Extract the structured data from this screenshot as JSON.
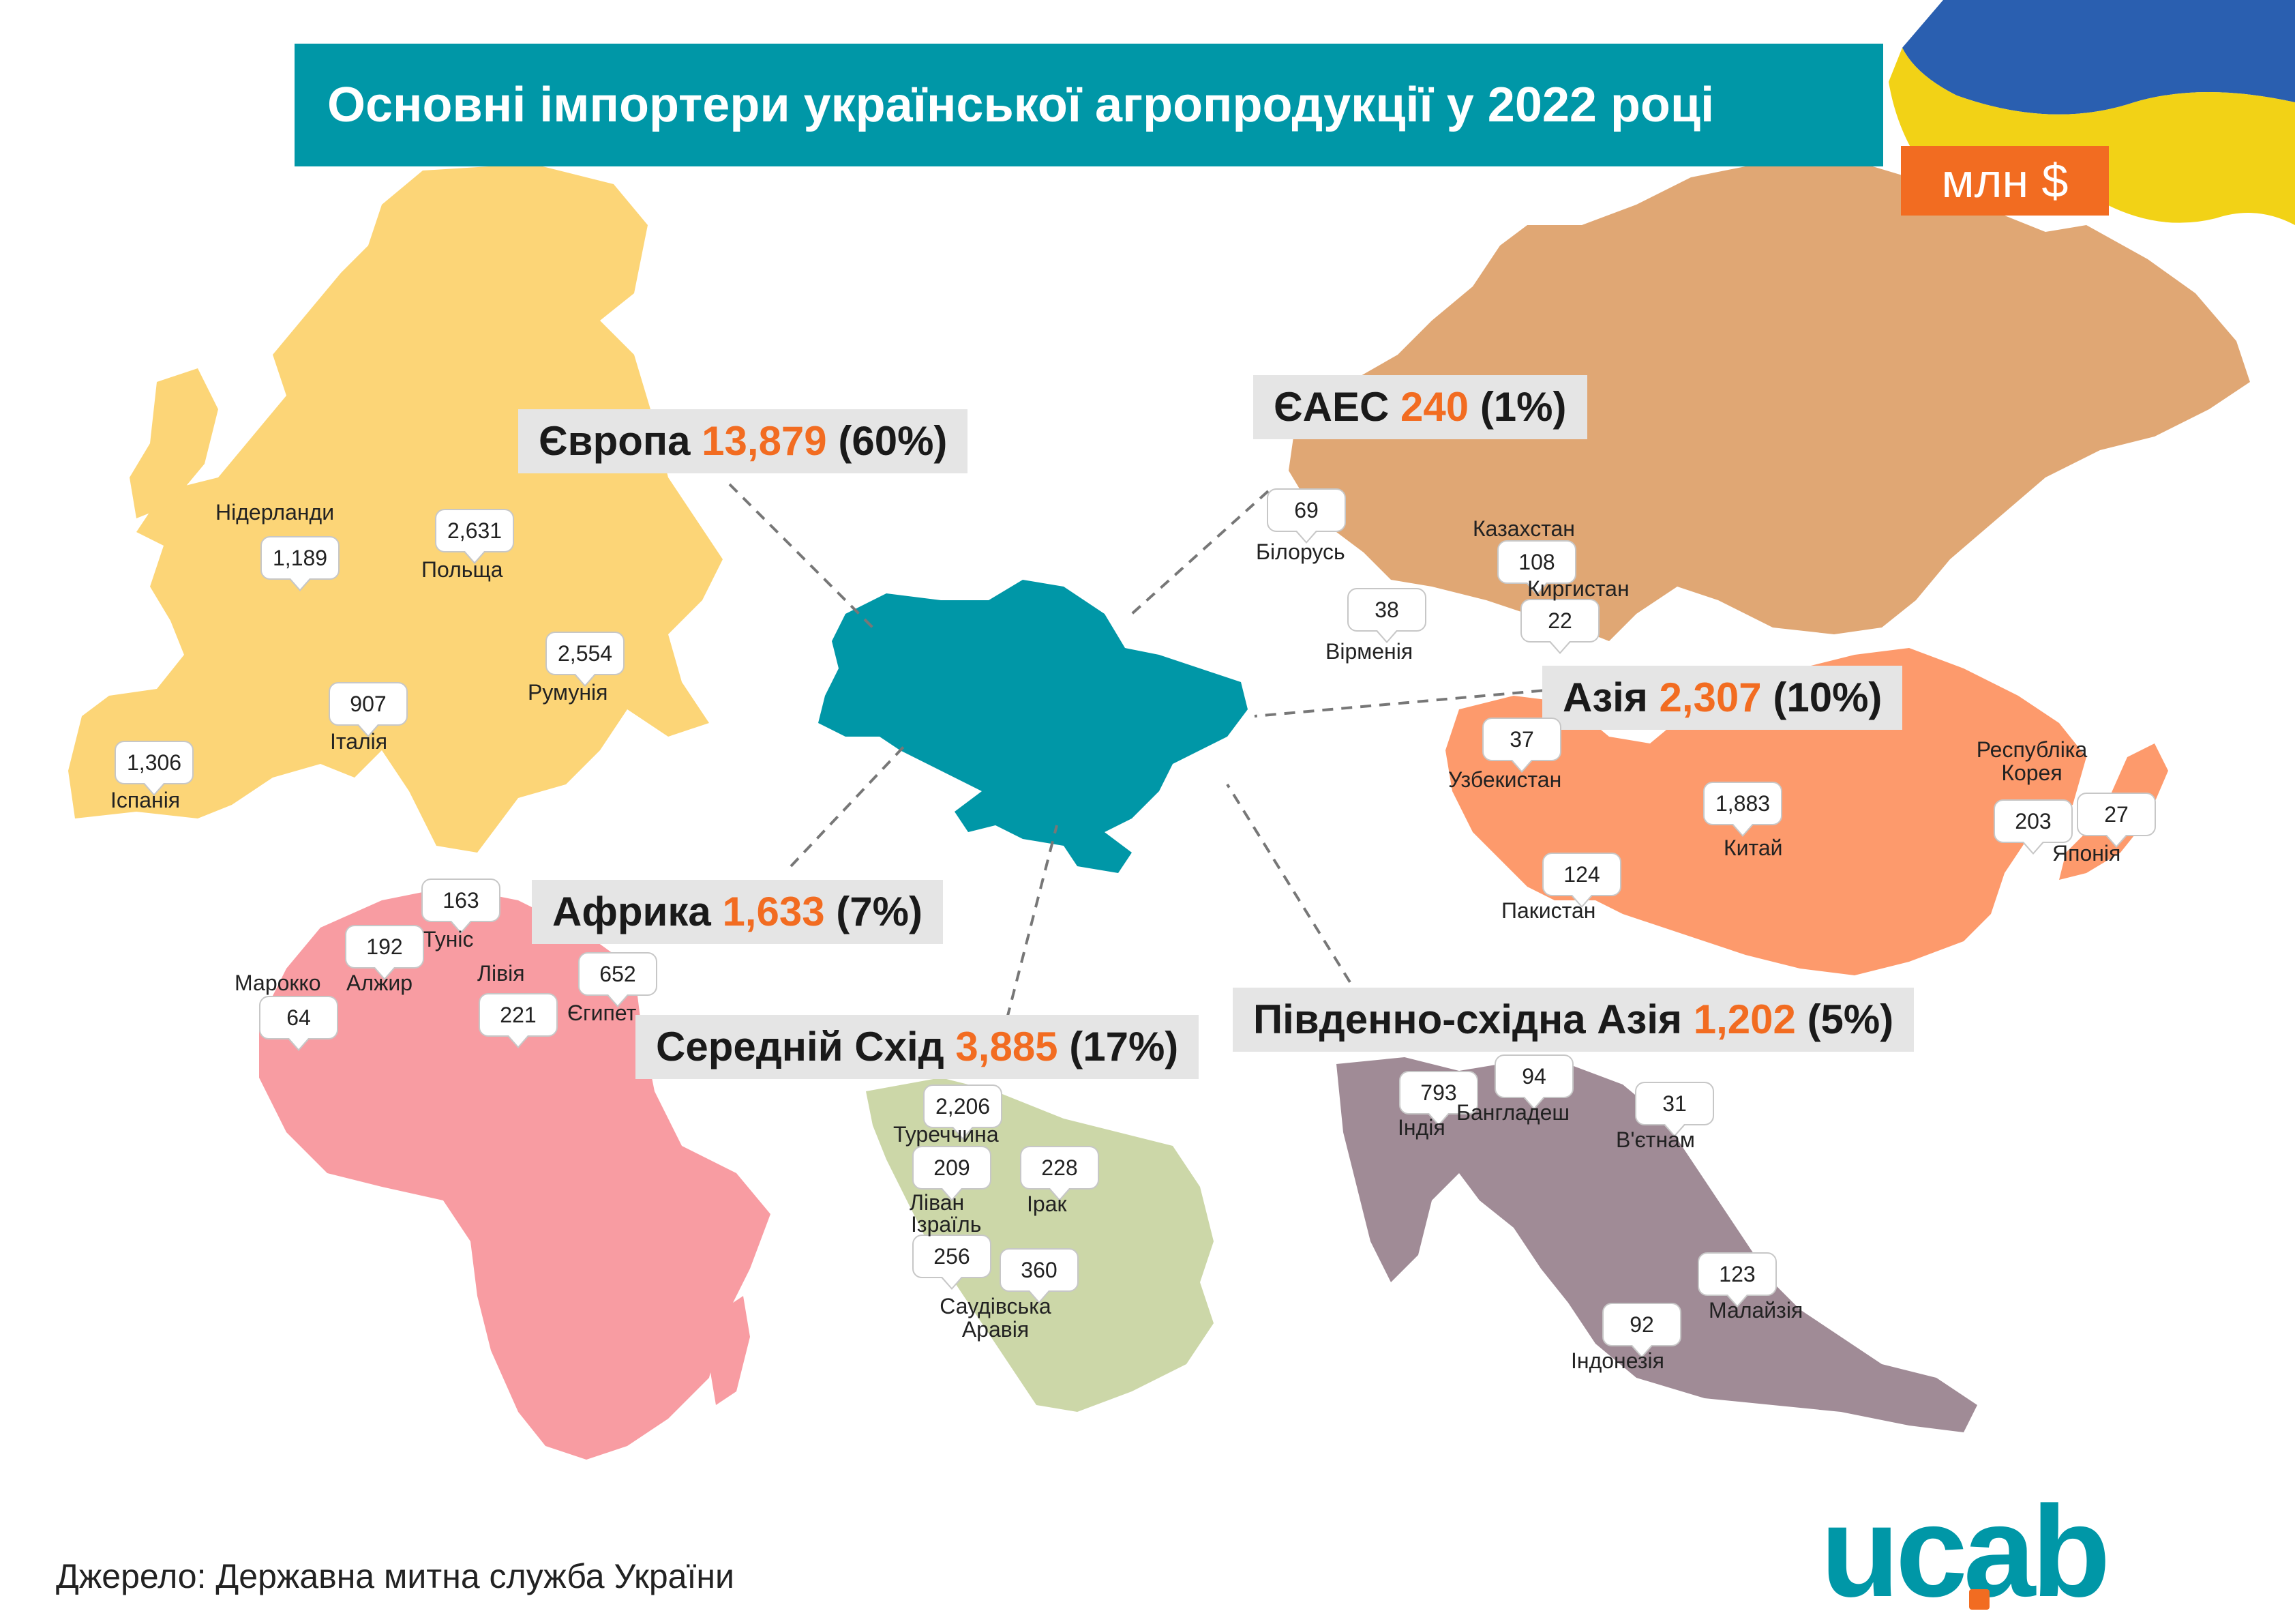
{
  "title": "Основні імпортери української агропродукції у 2022 році",
  "unit": "млн $",
  "source": "Джерело: Державна митна служба України",
  "logo": "ucab",
  "colors": {
    "ukraine": "#0097a7",
    "europe": "#fcd577",
    "eaeu": "#e0a774",
    "asia": "#fd9a6c",
    "africa": "#f89ca2",
    "middle_east": "#ccd7a8",
    "se_asia": "#a08b96",
    "value_accent": "#f26c21",
    "title_bg": "#0097a7",
    "label_bg": "#e5e5e5"
  },
  "regions": [
    {
      "name": "Європа",
      "value": "13,879",
      "share": "(60%)"
    },
    {
      "name": "ЄАЕС",
      "value": "240",
      "share": "(1%)"
    },
    {
      "name": "Азія",
      "value": "2,307",
      "share": "(10%)"
    },
    {
      "name": "Африка",
      "value": "1,633",
      "share": "(7%)"
    },
    {
      "name": "Середній Схід",
      "value": "3,885",
      "share": "(17%)"
    },
    {
      "name": "Південно-східна Азія",
      "value": "1,202",
      "share": "(5%)"
    }
  ],
  "countries": [
    {
      "name": "Нідерланди",
      "value": "1,189"
    },
    {
      "name": "Польща",
      "value": "2,631"
    },
    {
      "name": "Румунія",
      "value": "2,554"
    },
    {
      "name": "Італія",
      "value": "907"
    },
    {
      "name": "Іспанія",
      "value": "1,306"
    },
    {
      "name": "Білорусь",
      "value": "69"
    },
    {
      "name": "Казахстан",
      "value": "108"
    },
    {
      "name": "Киргистан",
      "value": "22"
    },
    {
      "name": "Вірменія",
      "value": "38"
    },
    {
      "name": "Узбекистан",
      "value": "37"
    },
    {
      "name": "Китай",
      "value": "1,883"
    },
    {
      "name": "Республіка Корея",
      "value": "203"
    },
    {
      "name": "Японія",
      "value": "27"
    },
    {
      "name": "Пакистан",
      "value": "124"
    },
    {
      "name": "Туніс",
      "value": "163"
    },
    {
      "name": "Алжир",
      "value": "192"
    },
    {
      "name": "Марокко",
      "value": "64"
    },
    {
      "name": "Лівія",
      "value": "221"
    },
    {
      "name": "Єгипет",
      "value": "652"
    },
    {
      "name": "Туреччина",
      "value": "2,206"
    },
    {
      "name": "Ліван",
      "value": "209"
    },
    {
      "name": "Ізраїль",
      "value": "256"
    },
    {
      "name": "Ірак",
      "value": "228"
    },
    {
      "name": "Саудівська Аравія",
      "value": "360"
    },
    {
      "name": "Індія",
      "value": "793"
    },
    {
      "name": "Бангладеш",
      "value": "94"
    },
    {
      "name": "В'єтнам",
      "value": "31"
    },
    {
      "name": "Малайзія",
      "value": "123"
    },
    {
      "name": "Індонезія",
      "value": "92"
    }
  ]
}
